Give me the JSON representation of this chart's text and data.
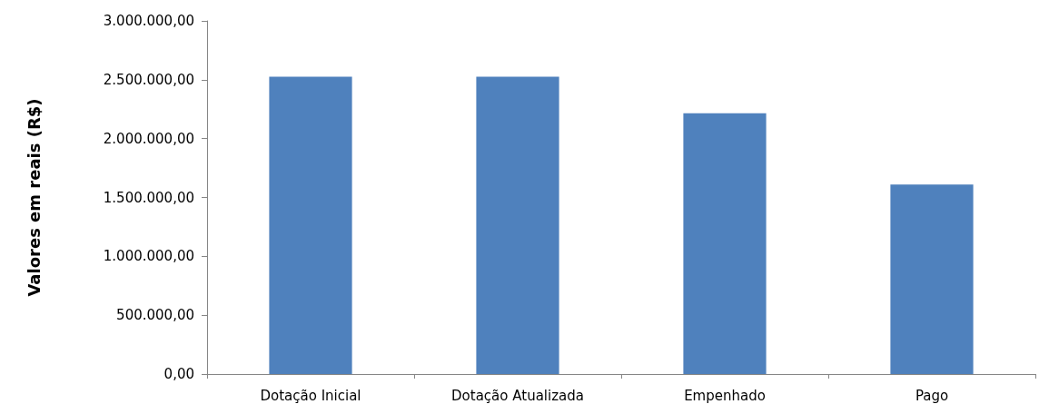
{
  "chart_data": {
    "type": "bar",
    "ylabel": "Valores em reais (R$)",
    "categories": [
      "Dotação Inicial",
      "Dotação Atualizada",
      "Empenhado",
      "Pago"
    ],
    "values": [
      2525000,
      2525000,
      2215000,
      1610000
    ],
    "color": "#4f81bd",
    "ylim": [
      0,
      3000000
    ],
    "yticks": [
      {
        "value": 0,
        "label": "0,00"
      },
      {
        "value": 500000,
        "label": "500.000,00"
      },
      {
        "value": 1000000,
        "label": "1.000.000,00"
      },
      {
        "value": 1500000,
        "label": "1.500.000,00"
      },
      {
        "value": 2000000,
        "label": "2.000.000,00"
      },
      {
        "value": 2500000,
        "label": "2.500.000,00"
      },
      {
        "value": 3000000,
        "label": "3.000.000,00"
      }
    ],
    "grid": false
  }
}
